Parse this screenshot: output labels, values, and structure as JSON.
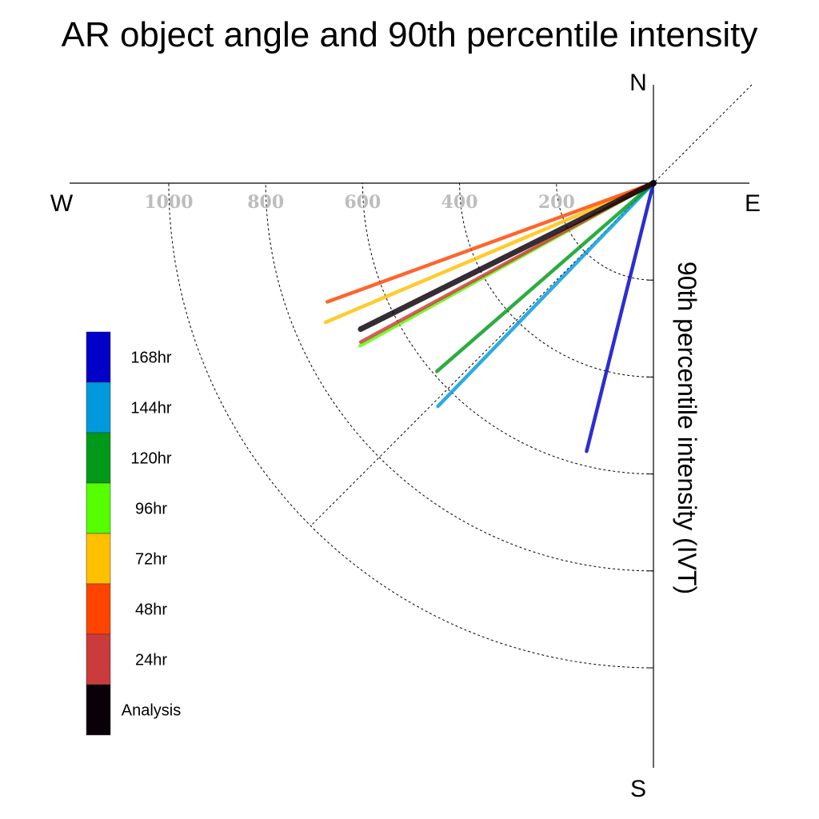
{
  "chart_data": {
    "type": "polar-vector",
    "title": "AR object angle and 90th percentile intensity",
    "radial_label": "90th percentile intensity (IVT)",
    "compass": {
      "north": "N",
      "south": "S",
      "east": "E",
      "west": "W"
    },
    "radial_ticks": [
      {
        "value": 200,
        "label": "200"
      },
      {
        "value": 400,
        "label": "400"
      },
      {
        "value": 600,
        "label": "600"
      },
      {
        "value": 800,
        "label": "800"
      },
      {
        "value": 1000,
        "label": "1000"
      }
    ],
    "r_max": 1200,
    "angle_unit": "degrees clockwise from north",
    "series": [
      {
        "name": "168hr",
        "color": "#0000c8",
        "angle_deg": 194,
        "intensity": 570
      },
      {
        "name": "144hr",
        "color": "#0099dd",
        "angle_deg": 224,
        "intensity": 640
      },
      {
        "name": "120hr",
        "color": "#009a18",
        "angle_deg": 229,
        "intensity": 592
      },
      {
        "name": "96hr",
        "color": "#55ff00",
        "angle_deg": 241,
        "intensity": 692
      },
      {
        "name": "72hr",
        "color": "#ffc000",
        "angle_deg": 247,
        "intensity": 735
      },
      {
        "name": "48hr",
        "color": "#ff4400",
        "angle_deg": 250,
        "intensity": 716
      },
      {
        "name": "24hr",
        "color": "#cc3b3b",
        "angle_deg": 241.5,
        "intensity": 687
      },
      {
        "name": "Analysis",
        "color": "#0a0008",
        "angle_deg": 243.5,
        "intensity": 675
      }
    ],
    "legend_position": "left",
    "grid": true
  }
}
